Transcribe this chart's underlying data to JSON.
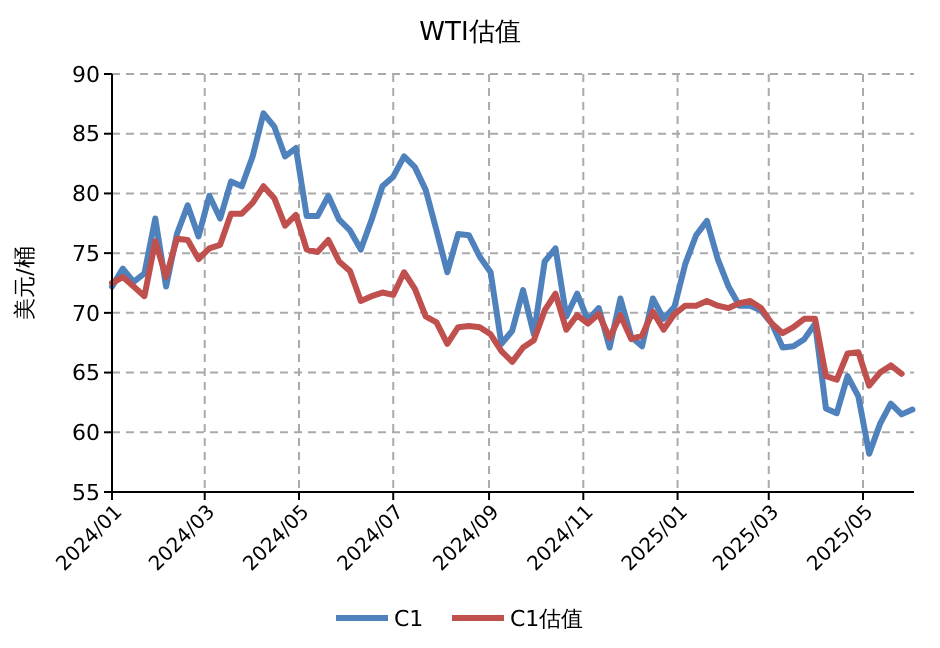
{
  "chart_data": {
    "type": "line",
    "title": "WTI估值",
    "ylabel": "美元/桶",
    "x": [
      "2024-01-01",
      "2024-01-08",
      "2024-01-15",
      "2024-01-22",
      "2024-01-29",
      "2024-02-05",
      "2024-02-12",
      "2024-02-19",
      "2024-02-26",
      "2024-03-04",
      "2024-03-11",
      "2024-03-18",
      "2024-03-25",
      "2024-04-01",
      "2024-04-08",
      "2024-04-15",
      "2024-04-22",
      "2024-04-29",
      "2024-05-06",
      "2024-05-13",
      "2024-05-20",
      "2024-05-27",
      "2024-06-03",
      "2024-06-10",
      "2024-06-17",
      "2024-06-24",
      "2024-07-01",
      "2024-07-08",
      "2024-07-15",
      "2024-07-22",
      "2024-07-29",
      "2024-08-05",
      "2024-08-12",
      "2024-08-19",
      "2024-08-26",
      "2024-09-02",
      "2024-09-09",
      "2024-09-16",
      "2024-09-23",
      "2024-09-30",
      "2024-10-07",
      "2024-10-14",
      "2024-10-21",
      "2024-10-28",
      "2024-11-04",
      "2024-11-11",
      "2024-11-18",
      "2024-11-25",
      "2024-12-02",
      "2024-12-09",
      "2024-12-16",
      "2024-12-23",
      "2024-12-30",
      "2025-01-06",
      "2025-01-13",
      "2025-01-20",
      "2025-01-27",
      "2025-02-03",
      "2025-02-10",
      "2025-02-17",
      "2025-02-24",
      "2025-03-03",
      "2025-03-10",
      "2025-03-17",
      "2025-03-24",
      "2025-03-31",
      "2025-04-07",
      "2025-04-14",
      "2025-04-21",
      "2025-04-28",
      "2025-05-05",
      "2025-05-12",
      "2025-05-19",
      "2025-05-26",
      "2025-06-02"
    ],
    "series": [
      {
        "name": "C1",
        "color": "#4f81bd",
        "values": [
          72.2,
          73.7,
          72.6,
          73.3,
          77.9,
          72.2,
          76.6,
          79.0,
          76.4,
          79.8,
          77.9,
          81.0,
          80.6,
          83.1,
          86.7,
          85.6,
          83.1,
          83.8,
          78.1,
          78.1,
          79.8,
          77.8,
          76.9,
          75.3,
          77.8,
          80.6,
          81.4,
          83.1,
          82.2,
          80.3,
          76.9,
          73.4,
          76.6,
          76.5,
          74.7,
          73.4,
          67.4,
          68.5,
          71.9,
          68.2,
          74.3,
          75.4,
          69.7,
          71.6,
          69.4,
          70.4,
          67.1,
          71.2,
          68.0,
          67.2,
          71.2,
          69.5,
          70.5,
          74.1,
          76.5,
          77.7,
          74.5,
          72.2,
          70.6,
          70.6,
          70.2,
          69.1,
          67.1,
          67.2,
          67.8,
          69.1,
          62.0,
          61.6,
          64.7,
          63.0,
          58.2,
          60.7,
          62.4,
          61.5,
          61.9
        ]
      },
      {
        "name": "C1估值",
        "color": "#c0504d",
        "values": [
          72.5,
          73.0,
          72.2,
          71.4,
          76.0,
          73.0,
          76.2,
          76.1,
          74.5,
          75.4,
          75.7,
          78.3,
          78.3,
          79.2,
          80.6,
          79.6,
          77.3,
          78.2,
          75.3,
          75.1,
          76.1,
          74.3,
          73.5,
          71.0,
          71.4,
          71.7,
          71.5,
          73.4,
          72.0,
          69.7,
          69.2,
          67.4,
          68.8,
          68.9,
          68.8,
          68.2,
          66.8,
          65.9,
          67.1,
          67.7,
          70.2,
          71.6,
          68.6,
          69.8,
          69.1,
          69.9,
          67.9,
          69.8,
          67.8,
          68.1,
          70.1,
          68.6,
          69.9,
          70.6,
          70.6,
          71.0,
          70.6,
          70.4,
          70.8,
          71.0,
          70.4,
          69.1,
          68.3,
          68.8,
          69.5,
          69.5,
          64.7,
          64.4,
          66.6,
          66.7,
          63.9,
          65.0,
          65.6,
          64.9,
          null
        ]
      }
    ],
    "xlim": [
      "2024-01-01",
      "2025-06-03"
    ],
    "xticks": [
      {
        "value": "2024-01-01",
        "label": "2024/01"
      },
      {
        "value": "2024-03-01",
        "label": "2024/03"
      },
      {
        "value": "2024-05-01",
        "label": "2024/05"
      },
      {
        "value": "2024-07-01",
        "label": "2024/07"
      },
      {
        "value": "2024-09-01",
        "label": "2024/09"
      },
      {
        "value": "2024-11-01",
        "label": "2024/11"
      },
      {
        "value": "2025-01-01",
        "label": "2025/01"
      },
      {
        "value": "2025-03-01",
        "label": "2025/03"
      },
      {
        "value": "2025-05-01",
        "label": "2025/05"
      }
    ],
    "ylim": [
      55,
      90
    ],
    "yticks": [
      55,
      60,
      65,
      70,
      75,
      80,
      85,
      90
    ],
    "grid": true,
    "legend": "bottom",
    "line_style": "solid",
    "marker": "none"
  }
}
